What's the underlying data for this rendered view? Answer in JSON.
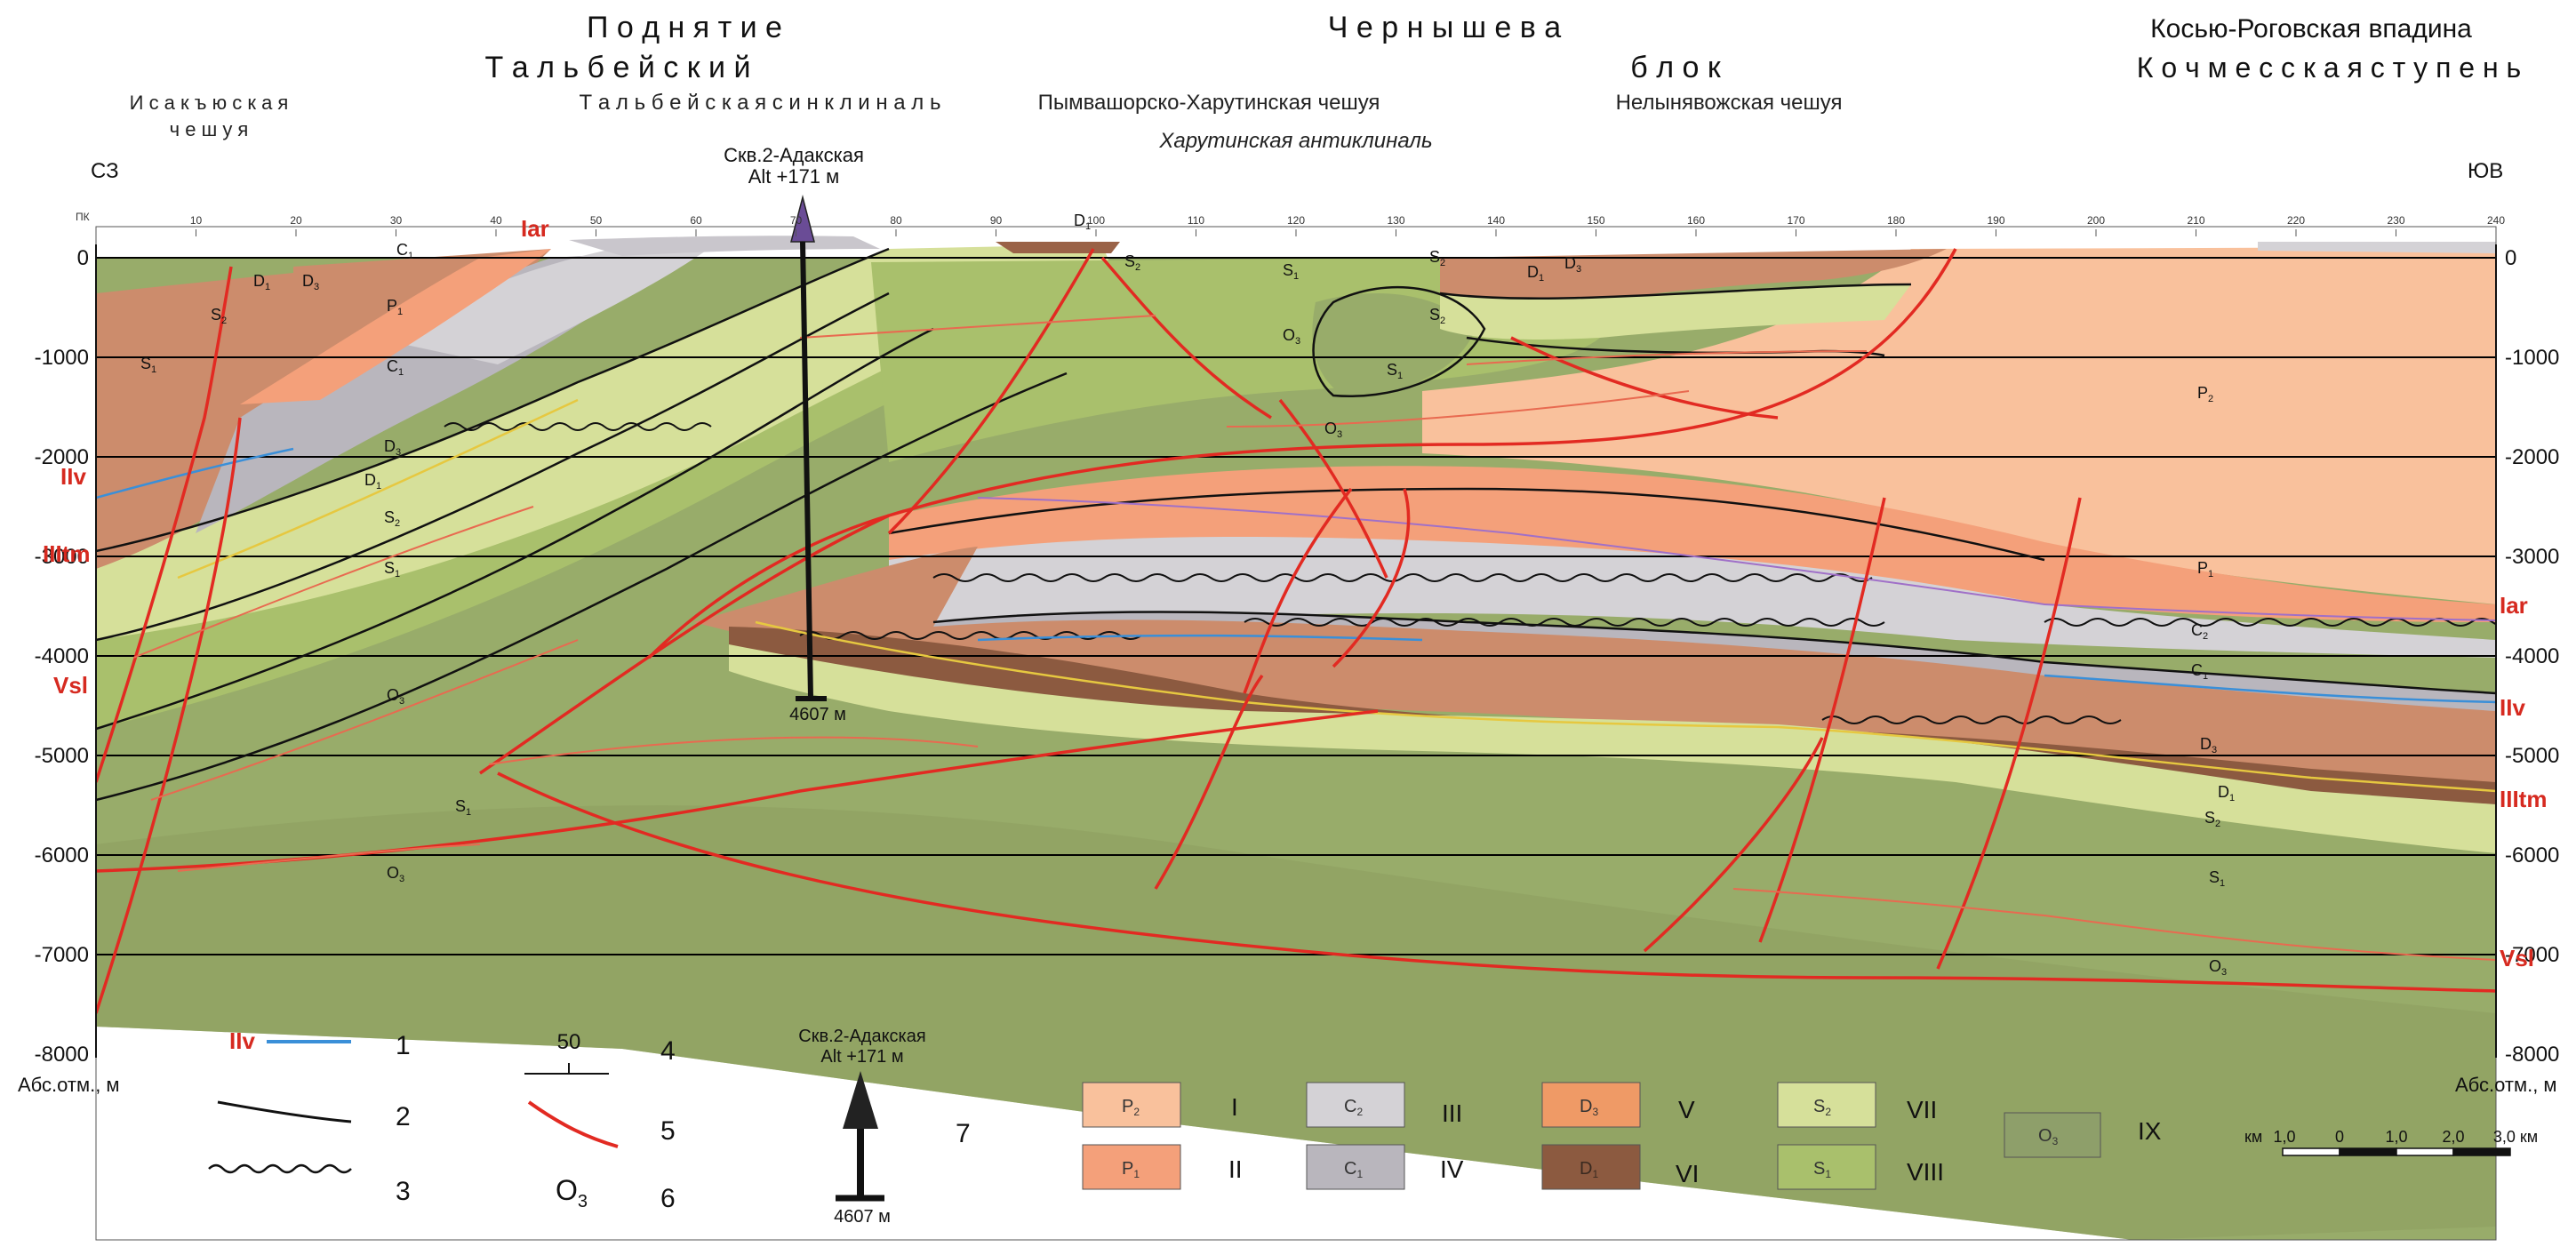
{
  "header": {
    "uplift_title": "П о д н я т и е",
    "chernyshev_title": "Ч е р н ы ш е в а",
    "talbey_title": "Т а л ь б е й с к и й",
    "block_title": "б л о к",
    "depression_title": "Косью-Роговская впадина",
    "step_title": "К о ч м е с с к а я с т у п е н ь",
    "isaky_line1": "И с а к ъ ю с к а я",
    "isaky_line2": "ч е ш у я",
    "talbey_syncline": "Т а л ь б е й с к а я   с и н к л и н а л ь",
    "pymva_scale": "Пымвашорско-Харутинская чешуя",
    "nelyn_scale": "Нелынявожская чешуя",
    "kharuta_anticline": "Харутинская антиклиналь",
    "nw": "СЗ",
    "se": "ЮВ"
  },
  "well": {
    "name": "Скв.2-Адакская",
    "alt": "Alt +171 м",
    "depth": "4607 м"
  },
  "axis": {
    "pk_label": "ПК",
    "pickets": [
      "10",
      "20",
      "30",
      "40",
      "50",
      "60",
      "70",
      "80",
      "90",
      "100",
      "110",
      "120",
      "130",
      "140",
      "150",
      "160",
      "170",
      "180",
      "190",
      "200",
      "210",
      "220",
      "230",
      "240"
    ],
    "depths": [
      "0",
      "-1000",
      "-2000",
      "-3000",
      "-4000",
      "-5000",
      "-6000",
      "-7000",
      "-8000"
    ],
    "unit_left": "Абс.отм., м",
    "unit_right": "Абс.отм., м"
  },
  "horizons": {
    "iar": "Iar",
    "iiv": "IIv",
    "iiitm": "IIItm",
    "vsl": "Vsl"
  },
  "strata_labels": {
    "c1": "C",
    "c1_sub": "1",
    "c2": "C",
    "c2_sub": "2",
    "p1": "P",
    "p1_sub": "1",
    "p2": "P",
    "p2_sub": "2",
    "d1": "D",
    "d1_sub": "1",
    "d3": "D",
    "d3_sub": "3",
    "s1": "S",
    "s1_sub": "1",
    "s2": "S",
    "s2_sub": "2",
    "o3": "O",
    "o3_sub": "3"
  },
  "legend": {
    "l1_code": "IIv",
    "l1_num": "1",
    "l2_num": "2",
    "l3_num": "3",
    "l4_value": "50",
    "l4_num": "4",
    "l5_num": "5",
    "l6_num": "6",
    "l7_name": "Скв.2-Адакская",
    "l7_alt": "Alt +171 м",
    "l7_depth": "4607 м",
    "l7_num": "7",
    "r1": "I",
    "r2": "II",
    "r3": "III",
    "r4": "IV",
    "r5": "V",
    "r6": "VI",
    "r7": "VII",
    "r8": "VIII",
    "r9": "IX",
    "scale_unit": "км",
    "scale_ticks": [
      "1,0",
      "0",
      "1,0",
      "2,0",
      "3,0 км"
    ]
  },
  "colors": {
    "p2": "#f9c19c",
    "p1": "#f4a07a",
    "c2": "#d4d2d6",
    "c1": "#b9b6bd",
    "d3": "#cc8c6c",
    "d1": "#8c5a40",
    "s2": "#d6e09a",
    "s1": "#a9c06c",
    "o3": "#98ac6a",
    "fault": "#e22a22",
    "horizon_blue": "#3a8fd8"
  }
}
